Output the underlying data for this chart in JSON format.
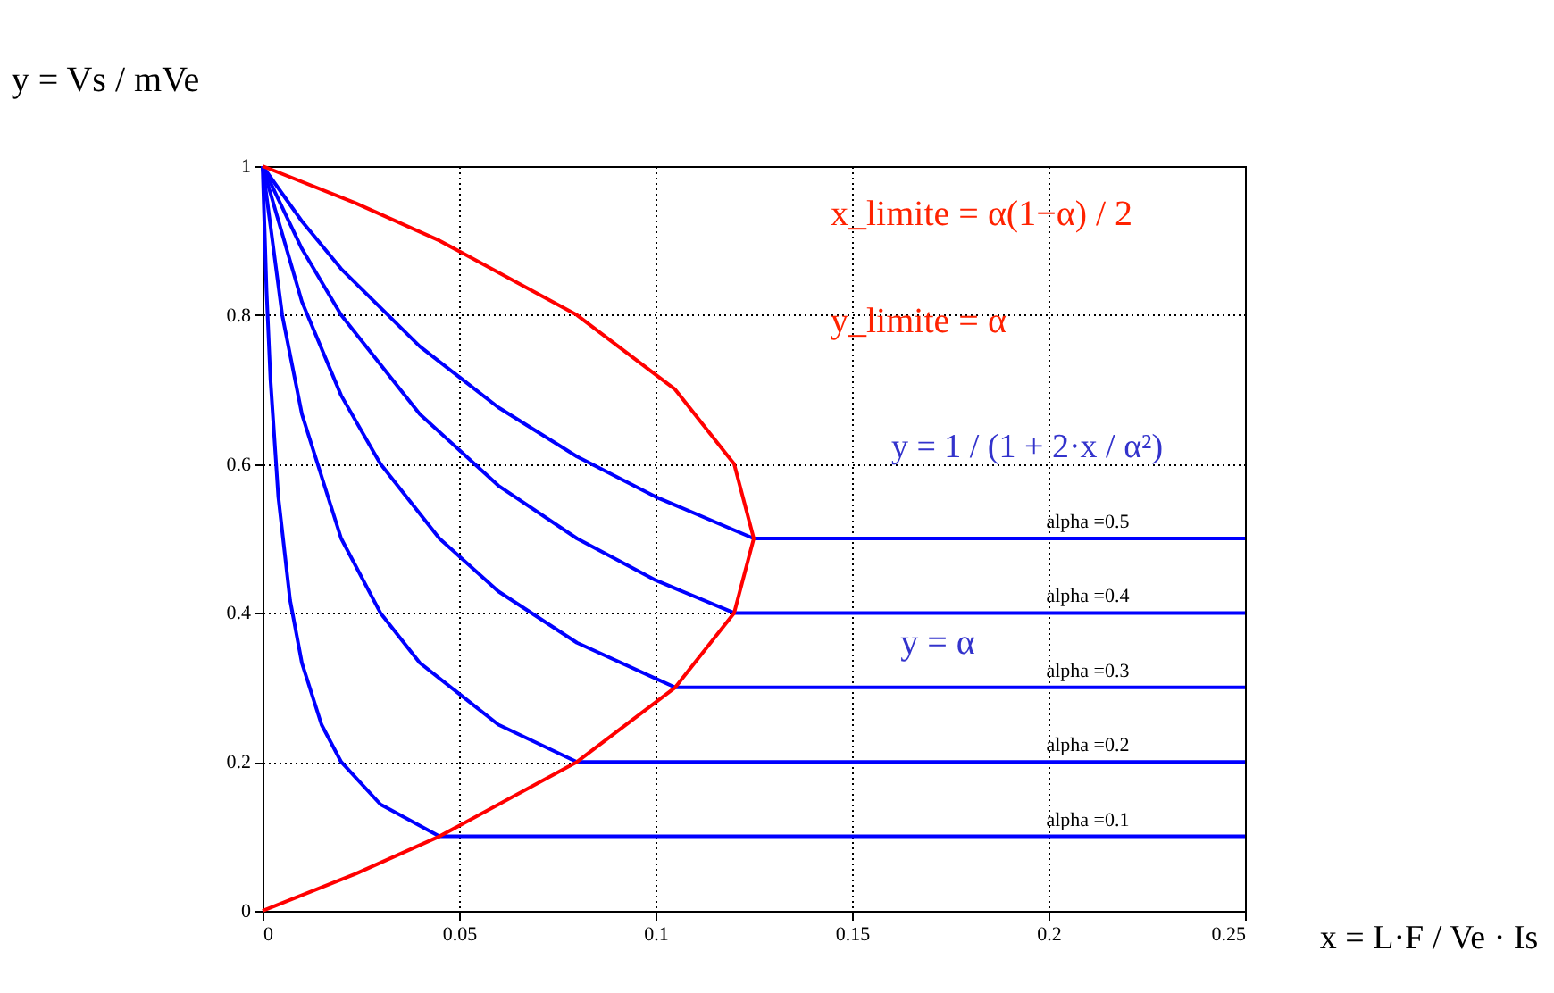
{
  "chart_data": {
    "type": "line",
    "xlim": [
      0,
      0.25
    ],
    "ylim": [
      0,
      1
    ],
    "xticks": [
      0,
      0.05,
      0.1,
      0.15,
      0.2,
      0.25
    ],
    "yticks": [
      0,
      0.2,
      0.4,
      0.6,
      0.8,
      1
    ],
    "grid": true,
    "marker": "none",
    "line_style": "solid",
    "series": [
      {
        "name": "alpha =0.1",
        "color": "#0000ff",
        "x": [
          0,
          0.001,
          0.002,
          0.004,
          0.007,
          0.01,
          0.015,
          0.02,
          0.03,
          0.045,
          0.25
        ],
        "values": [
          1,
          0.833,
          0.714,
          0.556,
          0.417,
          0.333,
          0.25,
          0.2,
          0.143,
          0.1,
          0.1
        ]
      },
      {
        "name": "alpha =0.2",
        "color": "#0000ff",
        "x": [
          0,
          0.005,
          0.01,
          0.02,
          0.03,
          0.04,
          0.06,
          0.08,
          0.25
        ],
        "values": [
          1,
          0.8,
          0.667,
          0.5,
          0.4,
          0.333,
          0.25,
          0.2,
          0.2
        ]
      },
      {
        "name": "alpha =0.3",
        "color": "#0000ff",
        "x": [
          0,
          0.01,
          0.02,
          0.03,
          0.045,
          0.06,
          0.08,
          0.105,
          0.25
        ],
        "values": [
          1,
          0.818,
          0.692,
          0.6,
          0.5,
          0.429,
          0.36,
          0.3,
          0.3
        ]
      },
      {
        "name": "alpha =0.4",
        "color": "#0000ff",
        "x": [
          0,
          0.01,
          0.02,
          0.04,
          0.06,
          0.08,
          0.1,
          0.12,
          0.25
        ],
        "values": [
          1,
          0.889,
          0.8,
          0.667,
          0.571,
          0.5,
          0.444,
          0.4,
          0.4
        ]
      },
      {
        "name": "alpha =0.5",
        "color": "#0000ff",
        "x": [
          0,
          0.01,
          0.02,
          0.04,
          0.06,
          0.08,
          0.1,
          0.125,
          0.25
        ],
        "values": [
          1,
          0.926,
          0.862,
          0.758,
          0.676,
          0.61,
          0.556,
          0.5,
          0.5
        ]
      },
      {
        "color": "#ff0000",
        "x": [
          0,
          0.02375,
          0.045,
          0.08,
          0.105,
          0.12,
          0.125,
          0.12,
          0.105,
          0.08,
          0.045,
          0.02375,
          0
        ],
        "values": [
          0,
          0.05,
          0.1,
          0.2,
          0.3,
          0.4,
          0.5,
          0.6,
          0.7,
          0.8,
          0.9,
          0.95,
          1
        ]
      }
    ],
    "annotations": [
      "y = Vs / mVe",
      "x = L·F / Ve · Is",
      "y = 1 / (1 + 2·x / α²)",
      "x_limite = α(1−α) / 2",
      "y_limite = α",
      "y = α"
    ]
  }
}
